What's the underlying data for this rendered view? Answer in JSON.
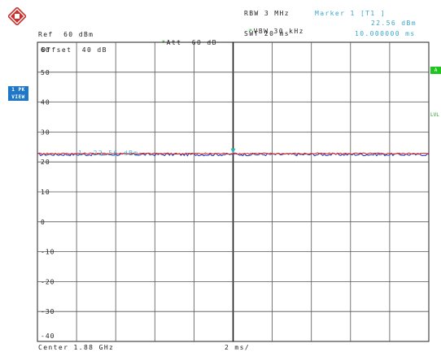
{
  "header": {
    "ref_level": "Ref  60 dBm",
    "att": "Att  60 dB",
    "rbw": "RBW 3 MHz",
    "vbw": "VBW 30 kHz",
    "swt": "SWT 20 ms",
    "marker_title": "Marker 1 [T1 ]",
    "marker_level": "22.56 dBm",
    "marker_time": "10.000000 ms",
    "star_symbol": "*"
  },
  "side": {
    "trace_badge_line1": "1 PK",
    "trace_badge_line2": "VIEW",
    "right_badge": "A",
    "right_label": "LVL"
  },
  "plot": {
    "offset_label": "Offset  40 dB",
    "y_ticks": [
      "60",
      "50",
      "40",
      "30",
      "20",
      "10",
      "0",
      "-10",
      "-20",
      "-30",
      "-40"
    ],
    "marker_label": "1  22.56 dBm",
    "footer_center": "Center 1.88 GHz",
    "footer_span": "2 ms/"
  },
  "chart_data": {
    "type": "line",
    "ylim": [
      -40,
      60
    ],
    "x_divisions": 10,
    "grid": true,
    "series": [
      {
        "color": "#1f3fbf",
        "level": 22.5
      },
      {
        "color": "#e0302a",
        "level": 22.8
      }
    ],
    "marker": {
      "time_ms": 10.0,
      "level": 22.56
    }
  },
  "colors": {
    "trace_blue": "#1f3fbf",
    "trace_red": "#e0302a",
    "grid": "#555555",
    "label_cyan": "#3aa6c9",
    "badge_blue": "#1f77c8",
    "status_green": "#1fc41f"
  },
  "icons": {
    "logo": "rohde-schwarz-logo-icon",
    "marker": "marker-triangle-icon"
  }
}
